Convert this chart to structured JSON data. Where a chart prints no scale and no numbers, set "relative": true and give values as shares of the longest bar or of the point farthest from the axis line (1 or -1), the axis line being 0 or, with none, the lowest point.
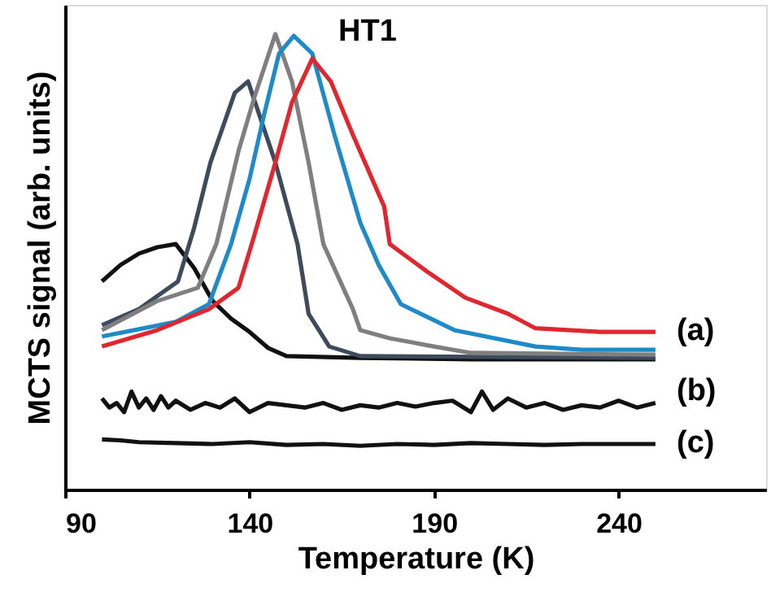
{
  "chart_data": {
    "type": "line",
    "relative": true,
    "xlabel": "Temperature (K)",
    "ylabel": "MCTS signal (arb. units)",
    "xlim": [
      90,
      280
    ],
    "xticks": [
      90,
      140,
      190,
      240
    ],
    "grid": false,
    "marker": "none",
    "line_style": "solid",
    "annotations": [
      "HT1",
      "(a)",
      "(b)",
      "(c)"
    ],
    "series": [
      {
        "color": "#111111",
        "x": [
          100,
          105,
          110,
          115,
          120,
          125,
          130,
          135,
          140,
          145,
          150,
          170,
          200,
          250
        ],
        "values": [
          0.457,
          0.493,
          0.518,
          0.532,
          0.539,
          0.486,
          0.414,
          0.375,
          0.346,
          0.311,
          0.293,
          0.289,
          0.286,
          0.286
        ]
      },
      {
        "color": "#3d4b5c",
        "x": [
          100,
          110,
          120.6,
          125,
          129.4,
          136,
          139.6,
          147,
          153,
          156,
          161.6,
          170,
          250
        ],
        "values": [
          0.361,
          0.396,
          0.457,
          0.575,
          0.718,
          0.871,
          0.896,
          0.718,
          0.539,
          0.386,
          0.314,
          0.293,
          0.289
        ]
      },
      {
        "color": "#7f7f7f",
        "x": [
          100,
          115,
          126,
          131,
          137,
          141.3,
          147,
          151.5,
          156,
          160,
          168,
          170,
          178,
          190,
          200,
          250
        ],
        "values": [
          0.35,
          0.414,
          0.443,
          0.539,
          0.743,
          0.861,
          1.0,
          0.896,
          0.718,
          0.539,
          0.396,
          0.35,
          0.332,
          0.314,
          0.3,
          0.296
        ]
      },
      {
        "color": "#1f8ac8",
        "x": [
          100,
          120,
          129,
          135,
          140,
          144,
          148,
          152,
          157,
          163,
          170,
          175,
          181,
          195.5,
          217.5,
          230,
          250
        ],
        "values": [
          0.336,
          0.368,
          0.407,
          0.539,
          0.682,
          0.825,
          0.957,
          0.996,
          0.957,
          0.779,
          0.586,
          0.493,
          0.407,
          0.35,
          0.314,
          0.307,
          0.307
        ]
      },
      {
        "color": "#e0262e",
        "x": [
          100,
          115,
          129,
          137,
          141,
          147,
          151.5,
          157,
          162,
          168,
          176.5,
          178,
          188,
          198.5,
          210,
          217.5,
          235,
          250
        ],
        "values": [
          0.314,
          0.35,
          0.396,
          0.443,
          0.55,
          0.718,
          0.85,
          0.946,
          0.896,
          0.779,
          0.621,
          0.539,
          0.479,
          0.421,
          0.386,
          0.354,
          0.346,
          0.346
        ]
      },
      {
        "color": "#111111",
        "x": [
          100,
          102,
          104,
          106,
          108,
          110,
          112,
          114,
          116,
          118,
          120,
          124,
          128,
          132,
          136,
          140,
          145,
          150,
          155,
          160,
          165,
          170,
          175,
          180,
          185,
          190,
          195,
          200,
          203,
          206,
          210,
          215,
          220,
          225,
          230,
          235,
          240,
          245,
          250
        ],
        "values": [
          0.2,
          0.18,
          0.19,
          0.17,
          0.215,
          0.18,
          0.2,
          0.175,
          0.205,
          0.18,
          0.195,
          0.175,
          0.19,
          0.18,
          0.2,
          0.17,
          0.19,
          0.185,
          0.18,
          0.19,
          0.175,
          0.185,
          0.18,
          0.19,
          0.182,
          0.19,
          0.195,
          0.17,
          0.215,
          0.175,
          0.2,
          0.18,
          0.19,
          0.175,
          0.185,
          0.18,
          0.195,
          0.18,
          0.19
        ]
      },
      {
        "color": "#111111",
        "x": [
          100,
          105,
          110,
          120,
          130,
          140,
          150,
          160,
          170,
          180,
          190,
          200,
          210,
          220,
          230,
          240,
          250
        ],
        "values": [
          0.11,
          0.108,
          0.104,
          0.102,
          0.1,
          0.104,
          0.098,
          0.1,
          0.096,
          0.1,
          0.098,
          0.102,
          0.1,
          0.098,
          0.1,
          0.1,
          0.1
        ]
      }
    ]
  }
}
